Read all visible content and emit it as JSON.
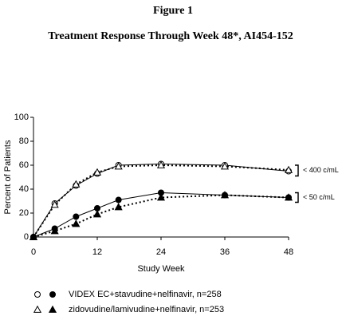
{
  "chart_data": {
    "type": "line",
    "title": "Figure 1",
    "subtitle": "Treatment Response Through Week 48*, AI454-152",
    "y_label": "Percent of Patients",
    "x_label": "Study Week",
    "x": [
      0,
      4,
      8,
      12,
      16,
      24,
      36,
      48
    ],
    "xlim": [
      0,
      48
    ],
    "xticks": [
      0,
      12,
      24,
      36,
      48
    ],
    "ylim": [
      0,
      100
    ],
    "yticks": [
      0,
      20,
      40,
      60,
      80,
      100
    ],
    "grid": false,
    "thresholds": [
      "< 400 c/mL",
      "< 50 c/mL"
    ],
    "marker_fills": [
      "#ffffff",
      "#000000"
    ],
    "series": [
      {
        "name": "VIDEX EC+stavudine+nelfinavir, n=258",
        "marker": "circle",
        "line": "solid",
        "color": "#000000",
        "values": [
          [
            0,
            28,
            43,
            53,
            60,
            61,
            60,
            55
          ],
          [
            0,
            7,
            17,
            24,
            31,
            37,
            35,
            33
          ]
        ]
      },
      {
        "name": "zidovudine/lamivudine+nelfinavir, n=253",
        "marker": "triangle",
        "line": "dotted",
        "color": "#000000",
        "values": [
          [
            0,
            27,
            44,
            54,
            59,
            60,
            59,
            56
          ],
          [
            0,
            5,
            11,
            19,
            25,
            33,
            35,
            33
          ]
        ]
      }
    ]
  }
}
